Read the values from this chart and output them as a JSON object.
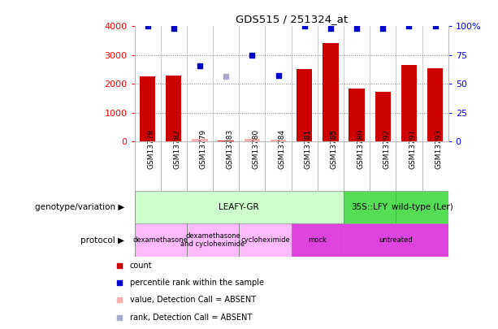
{
  "title": "GDS515 / 251324_at",
  "samples": [
    "GSM13778",
    "GSM13782",
    "GSM13779",
    "GSM13783",
    "GSM13780",
    "GSM13784",
    "GSM13781",
    "GSM13785",
    "GSM13789",
    "GSM13792",
    "GSM13791",
    "GSM13793"
  ],
  "bar_values": [
    2250,
    2290,
    80,
    30,
    90,
    60,
    2520,
    3430,
    1840,
    1730,
    2660,
    2540
  ],
  "bar_absent": [
    false,
    false,
    true,
    false,
    true,
    true,
    false,
    false,
    false,
    false,
    false,
    false
  ],
  "dot_values": [
    4000,
    3920,
    2640,
    2270,
    3000,
    2280,
    4000,
    3920,
    3920,
    3920,
    4000,
    4000
  ],
  "dot_absent": [
    false,
    false,
    false,
    true,
    false,
    false,
    false,
    false,
    false,
    false,
    false,
    false
  ],
  "bar_color": "#cc0000",
  "bar_absent_color": "#ffb0b0",
  "dot_color": "#0000cc",
  "dot_absent_color": "#aaaacc",
  "ylim_left": [
    0,
    4000
  ],
  "ylim_right": [
    0,
    100
  ],
  "yticks_left": [
    0,
    1000,
    2000,
    3000,
    4000
  ],
  "yticks_right": [
    0,
    25,
    50,
    75,
    100
  ],
  "ytick_labels_right": [
    "0",
    "25",
    "50",
    "75",
    "100%"
  ],
  "grid_values": [
    1000,
    2000,
    3000
  ],
  "genotype_groups": [
    {
      "label": "LEAFY-GR",
      "start": 0,
      "end": 8,
      "color": "#ccffcc"
    },
    {
      "label": "35S::LFY",
      "start": 8,
      "end": 10,
      "color": "#55dd55"
    },
    {
      "label": "wild-type (Ler)",
      "start": 10,
      "end": 12,
      "color": "#55dd55"
    }
  ],
  "protocol_groups": [
    {
      "label": "dexamethasone",
      "start": 0,
      "end": 2,
      "color": "#ffbbff"
    },
    {
      "label": "dexamethasone\nand cycloheximide",
      "start": 2,
      "end": 4,
      "color": "#ffbbff"
    },
    {
      "label": "cycloheximide",
      "start": 4,
      "end": 6,
      "color": "#ffbbff"
    },
    {
      "label": "mock",
      "start": 6,
      "end": 8,
      "color": "#dd44dd"
    },
    {
      "label": "untreated",
      "start": 8,
      "end": 12,
      "color": "#dd44dd"
    }
  ],
  "legend_items": [
    {
      "label": "count",
      "color": "#cc0000"
    },
    {
      "label": "percentile rank within the sample",
      "color": "#0000cc"
    },
    {
      "label": "value, Detection Call = ABSENT",
      "color": "#ffb0b0"
    },
    {
      "label": "rank, Detection Call = ABSENT",
      "color": "#aaaacc"
    }
  ],
  "xtick_bg_color": "#cccccc",
  "left_label_geno": "genotype/variation",
  "left_label_proto": "protocol"
}
